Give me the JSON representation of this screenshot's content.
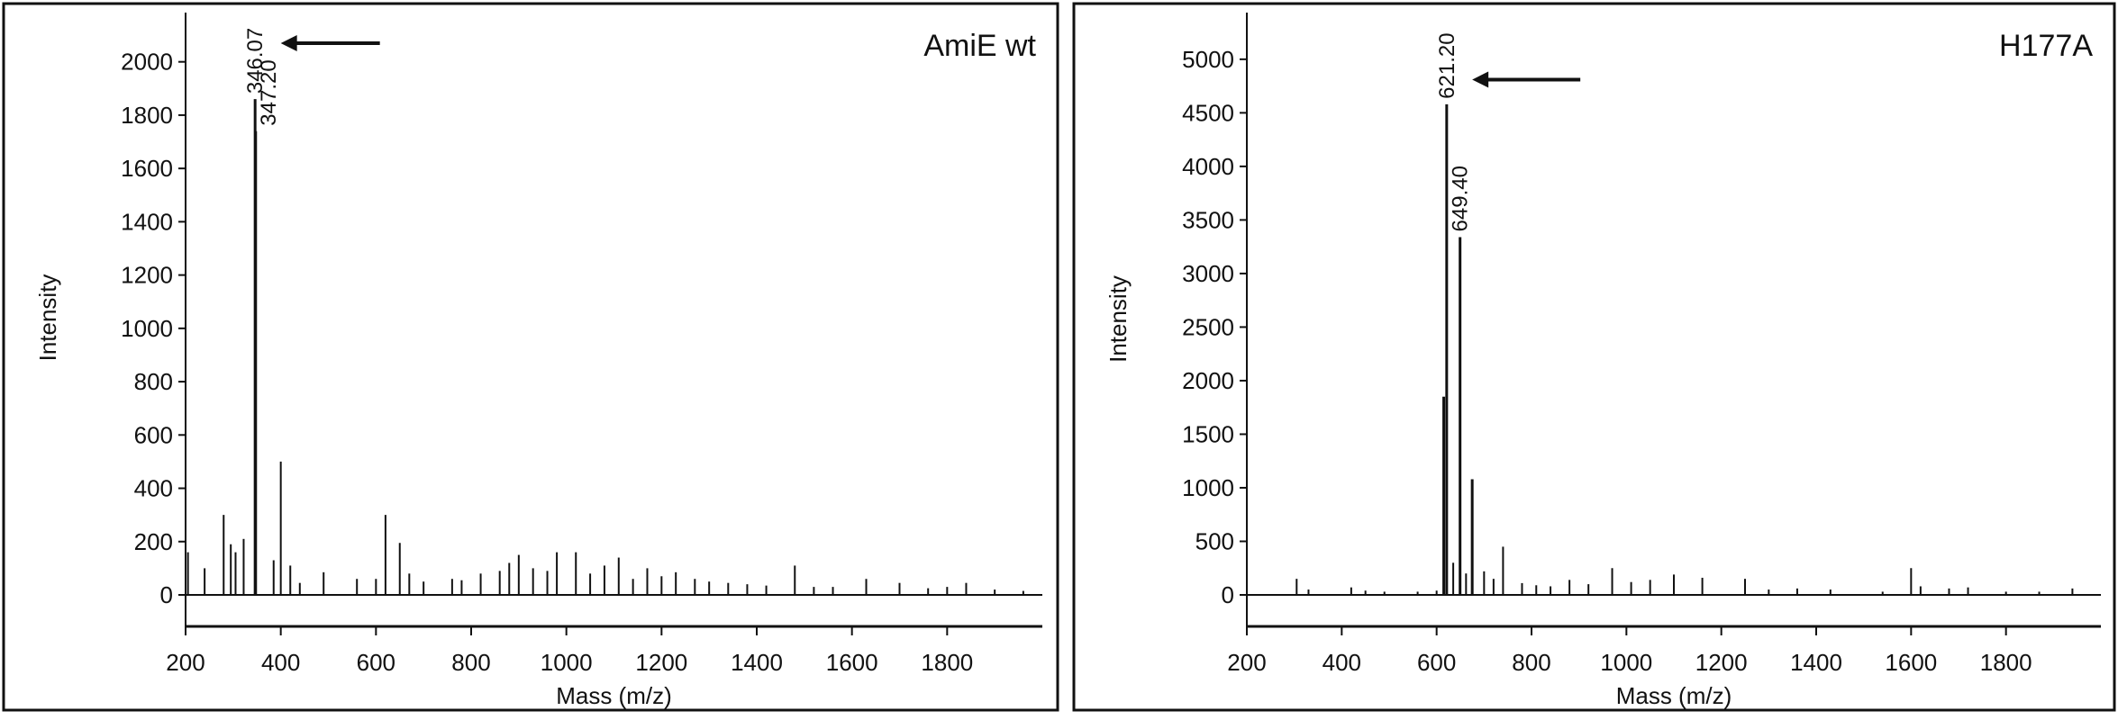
{
  "chart_data": [
    {
      "type": "bar",
      "panel_label": "AmiE wt",
      "xlabel": "Mass (m/z)",
      "ylabel": "Intensity",
      "xlim": [
        200,
        2000
      ],
      "ylim": [
        -130,
        2080
      ],
      "xticks": [
        200,
        400,
        600,
        800,
        1000,
        1200,
        1400,
        1600,
        1800
      ],
      "yticks": [
        0,
        200,
        400,
        600,
        800,
        1000,
        1200,
        1400,
        1600,
        1800,
        2000
      ],
      "grid": false,
      "legend": "none",
      "peaks": [
        {
          "x": 205,
          "y": 160
        },
        {
          "x": 240,
          "y": 100
        },
        {
          "x": 280,
          "y": 300
        },
        {
          "x": 295,
          "y": 190
        },
        {
          "x": 305,
          "y": 160
        },
        {
          "x": 322,
          "y": 210
        },
        {
          "x": 346.07,
          "y": 1860
        },
        {
          "x": 347.2,
          "y": 1740
        },
        {
          "x": 385,
          "y": 130
        },
        {
          "x": 400,
          "y": 500
        },
        {
          "x": 420,
          "y": 110
        },
        {
          "x": 440,
          "y": 45
        },
        {
          "x": 490,
          "y": 85
        },
        {
          "x": 560,
          "y": 60
        },
        {
          "x": 600,
          "y": 60
        },
        {
          "x": 620,
          "y": 300
        },
        {
          "x": 650,
          "y": 195
        },
        {
          "x": 670,
          "y": 80
        },
        {
          "x": 700,
          "y": 50
        },
        {
          "x": 760,
          "y": 60
        },
        {
          "x": 780,
          "y": 55
        },
        {
          "x": 820,
          "y": 80
        },
        {
          "x": 860,
          "y": 90
        },
        {
          "x": 880,
          "y": 120
        },
        {
          "x": 900,
          "y": 150
        },
        {
          "x": 930,
          "y": 100
        },
        {
          "x": 960,
          "y": 90
        },
        {
          "x": 980,
          "y": 160
        },
        {
          "x": 1020,
          "y": 160
        },
        {
          "x": 1050,
          "y": 80
        },
        {
          "x": 1080,
          "y": 110
        },
        {
          "x": 1110,
          "y": 140
        },
        {
          "x": 1140,
          "y": 60
        },
        {
          "x": 1170,
          "y": 100
        },
        {
          "x": 1200,
          "y": 70
        },
        {
          "x": 1230,
          "y": 85
        },
        {
          "x": 1270,
          "y": 60
        },
        {
          "x": 1300,
          "y": 50
        },
        {
          "x": 1340,
          "y": 45
        },
        {
          "x": 1380,
          "y": 40
        },
        {
          "x": 1420,
          "y": 35
        },
        {
          "x": 1480,
          "y": 110
        },
        {
          "x": 1520,
          "y": 30
        },
        {
          "x": 1560,
          "y": 30
        },
        {
          "x": 1630,
          "y": 60
        },
        {
          "x": 1700,
          "y": 45
        },
        {
          "x": 1760,
          "y": 25
        },
        {
          "x": 1800,
          "y": 30
        },
        {
          "x": 1840,
          "y": 45
        },
        {
          "x": 1900,
          "y": 20
        },
        {
          "x": 1960,
          "y": 15
        }
      ],
      "peak_labels": [
        {
          "x": 346.07,
          "y": 1860,
          "text": "346.07"
        },
        {
          "x": 347.2,
          "y": 1740,
          "text": "347.20"
        }
      ],
      "arrow_target": {
        "x": 400,
        "y": 2070
      }
    },
    {
      "type": "bar",
      "panel_label": "H177A",
      "xlabel": "Mass (m/z)",
      "ylabel": "Intensity",
      "xlim": [
        200,
        2000
      ],
      "ylim": [
        -320,
        5150
      ],
      "xticks": [
        200,
        400,
        600,
        800,
        1000,
        1200,
        1400,
        1600,
        1800
      ],
      "yticks": [
        0,
        500,
        1000,
        1500,
        2000,
        2500,
        3000,
        3500,
        4000,
        4500,
        5000
      ],
      "grid": false,
      "legend": "none",
      "peaks": [
        {
          "x": 305,
          "y": 150
        },
        {
          "x": 330,
          "y": 50
        },
        {
          "x": 420,
          "y": 70
        },
        {
          "x": 450,
          "y": 40
        },
        {
          "x": 490,
          "y": 30
        },
        {
          "x": 560,
          "y": 30
        },
        {
          "x": 600,
          "y": 40
        },
        {
          "x": 615,
          "y": 1850
        },
        {
          "x": 621.2,
          "y": 4580
        },
        {
          "x": 635,
          "y": 300
        },
        {
          "x": 649.4,
          "y": 3340
        },
        {
          "x": 662,
          "y": 200
        },
        {
          "x": 675,
          "y": 1080
        },
        {
          "x": 700,
          "y": 220
        },
        {
          "x": 720,
          "y": 150
        },
        {
          "x": 740,
          "y": 450
        },
        {
          "x": 780,
          "y": 110
        },
        {
          "x": 810,
          "y": 90
        },
        {
          "x": 840,
          "y": 80
        },
        {
          "x": 880,
          "y": 140
        },
        {
          "x": 920,
          "y": 100
        },
        {
          "x": 970,
          "y": 250
        },
        {
          "x": 1010,
          "y": 120
        },
        {
          "x": 1050,
          "y": 140
        },
        {
          "x": 1100,
          "y": 190
        },
        {
          "x": 1160,
          "y": 160
        },
        {
          "x": 1250,
          "y": 150
        },
        {
          "x": 1300,
          "y": 50
        },
        {
          "x": 1360,
          "y": 60
        },
        {
          "x": 1430,
          "y": 50
        },
        {
          "x": 1540,
          "y": 30
        },
        {
          "x": 1600,
          "y": 250
        },
        {
          "x": 1620,
          "y": 80
        },
        {
          "x": 1680,
          "y": 60
        },
        {
          "x": 1720,
          "y": 70
        },
        {
          "x": 1800,
          "y": 30
        },
        {
          "x": 1870,
          "y": 30
        },
        {
          "x": 1940,
          "y": 60
        }
      ],
      "peak_labels": [
        {
          "x": 621.2,
          "y": 4580,
          "text": "621.20"
        },
        {
          "x": 649.4,
          "y": 3340,
          "text": "649.40"
        }
      ],
      "arrow_target": {
        "x": 675,
        "y": 4810
      }
    }
  ]
}
